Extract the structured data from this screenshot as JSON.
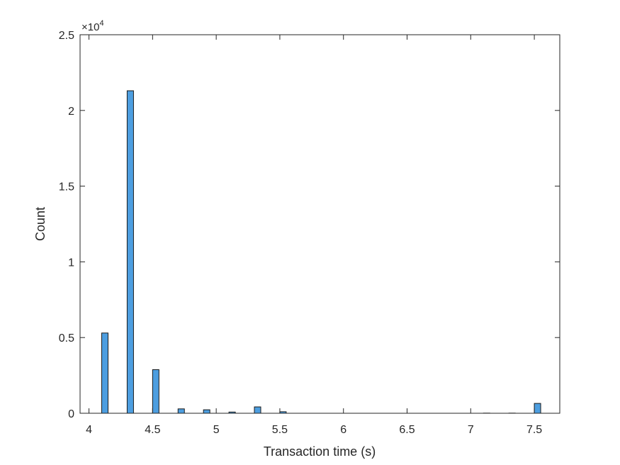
{
  "chart_data": {
    "type": "bar",
    "subtype": "histogram",
    "xlabel": "Transaction time (s)",
    "ylabel": "Count",
    "xlim": [
      3.93,
      7.7
    ],
    "ylim": [
      0,
      25000
    ],
    "x_ticks": [
      4,
      4.5,
      5,
      5.5,
      6,
      6.5,
      7,
      7.5
    ],
    "x_tick_labels": [
      "4",
      "4.5",
      "5",
      "5.5",
      "6",
      "6.5",
      "7",
      "7.5"
    ],
    "y_ticks": [
      0,
      5000,
      10000,
      15000,
      20000,
      25000
    ],
    "y_tick_labels": [
      "0",
      "0.5",
      "1",
      "1.5",
      "2",
      "2.5"
    ],
    "y_exponent_label": "×10",
    "y_exponent_power": "4",
    "bar_color": "#4d9ee0",
    "edge_color": "#1a1a1a",
    "series": [
      {
        "bins": [
          {
            "x0": 4.1,
            "x1": 4.15,
            "count": 5300
          },
          {
            "x0": 4.3,
            "x1": 4.35,
            "count": 21300
          },
          {
            "x0": 4.5,
            "x1": 4.55,
            "count": 2880
          },
          {
            "x0": 4.7,
            "x1": 4.75,
            "count": 290
          },
          {
            "x0": 4.9,
            "x1": 4.95,
            "count": 230
          },
          {
            "x0": 5.1,
            "x1": 5.15,
            "count": 80
          },
          {
            "x0": 5.3,
            "x1": 5.35,
            "count": 420
          },
          {
            "x0": 5.5,
            "x1": 5.55,
            "count": 100
          },
          {
            "x0": 7.1,
            "x1": 7.15,
            "count": 10
          },
          {
            "x0": 7.3,
            "x1": 7.35,
            "count": 10
          },
          {
            "x0": 7.5,
            "x1": 7.55,
            "count": 650
          }
        ]
      }
    ]
  }
}
